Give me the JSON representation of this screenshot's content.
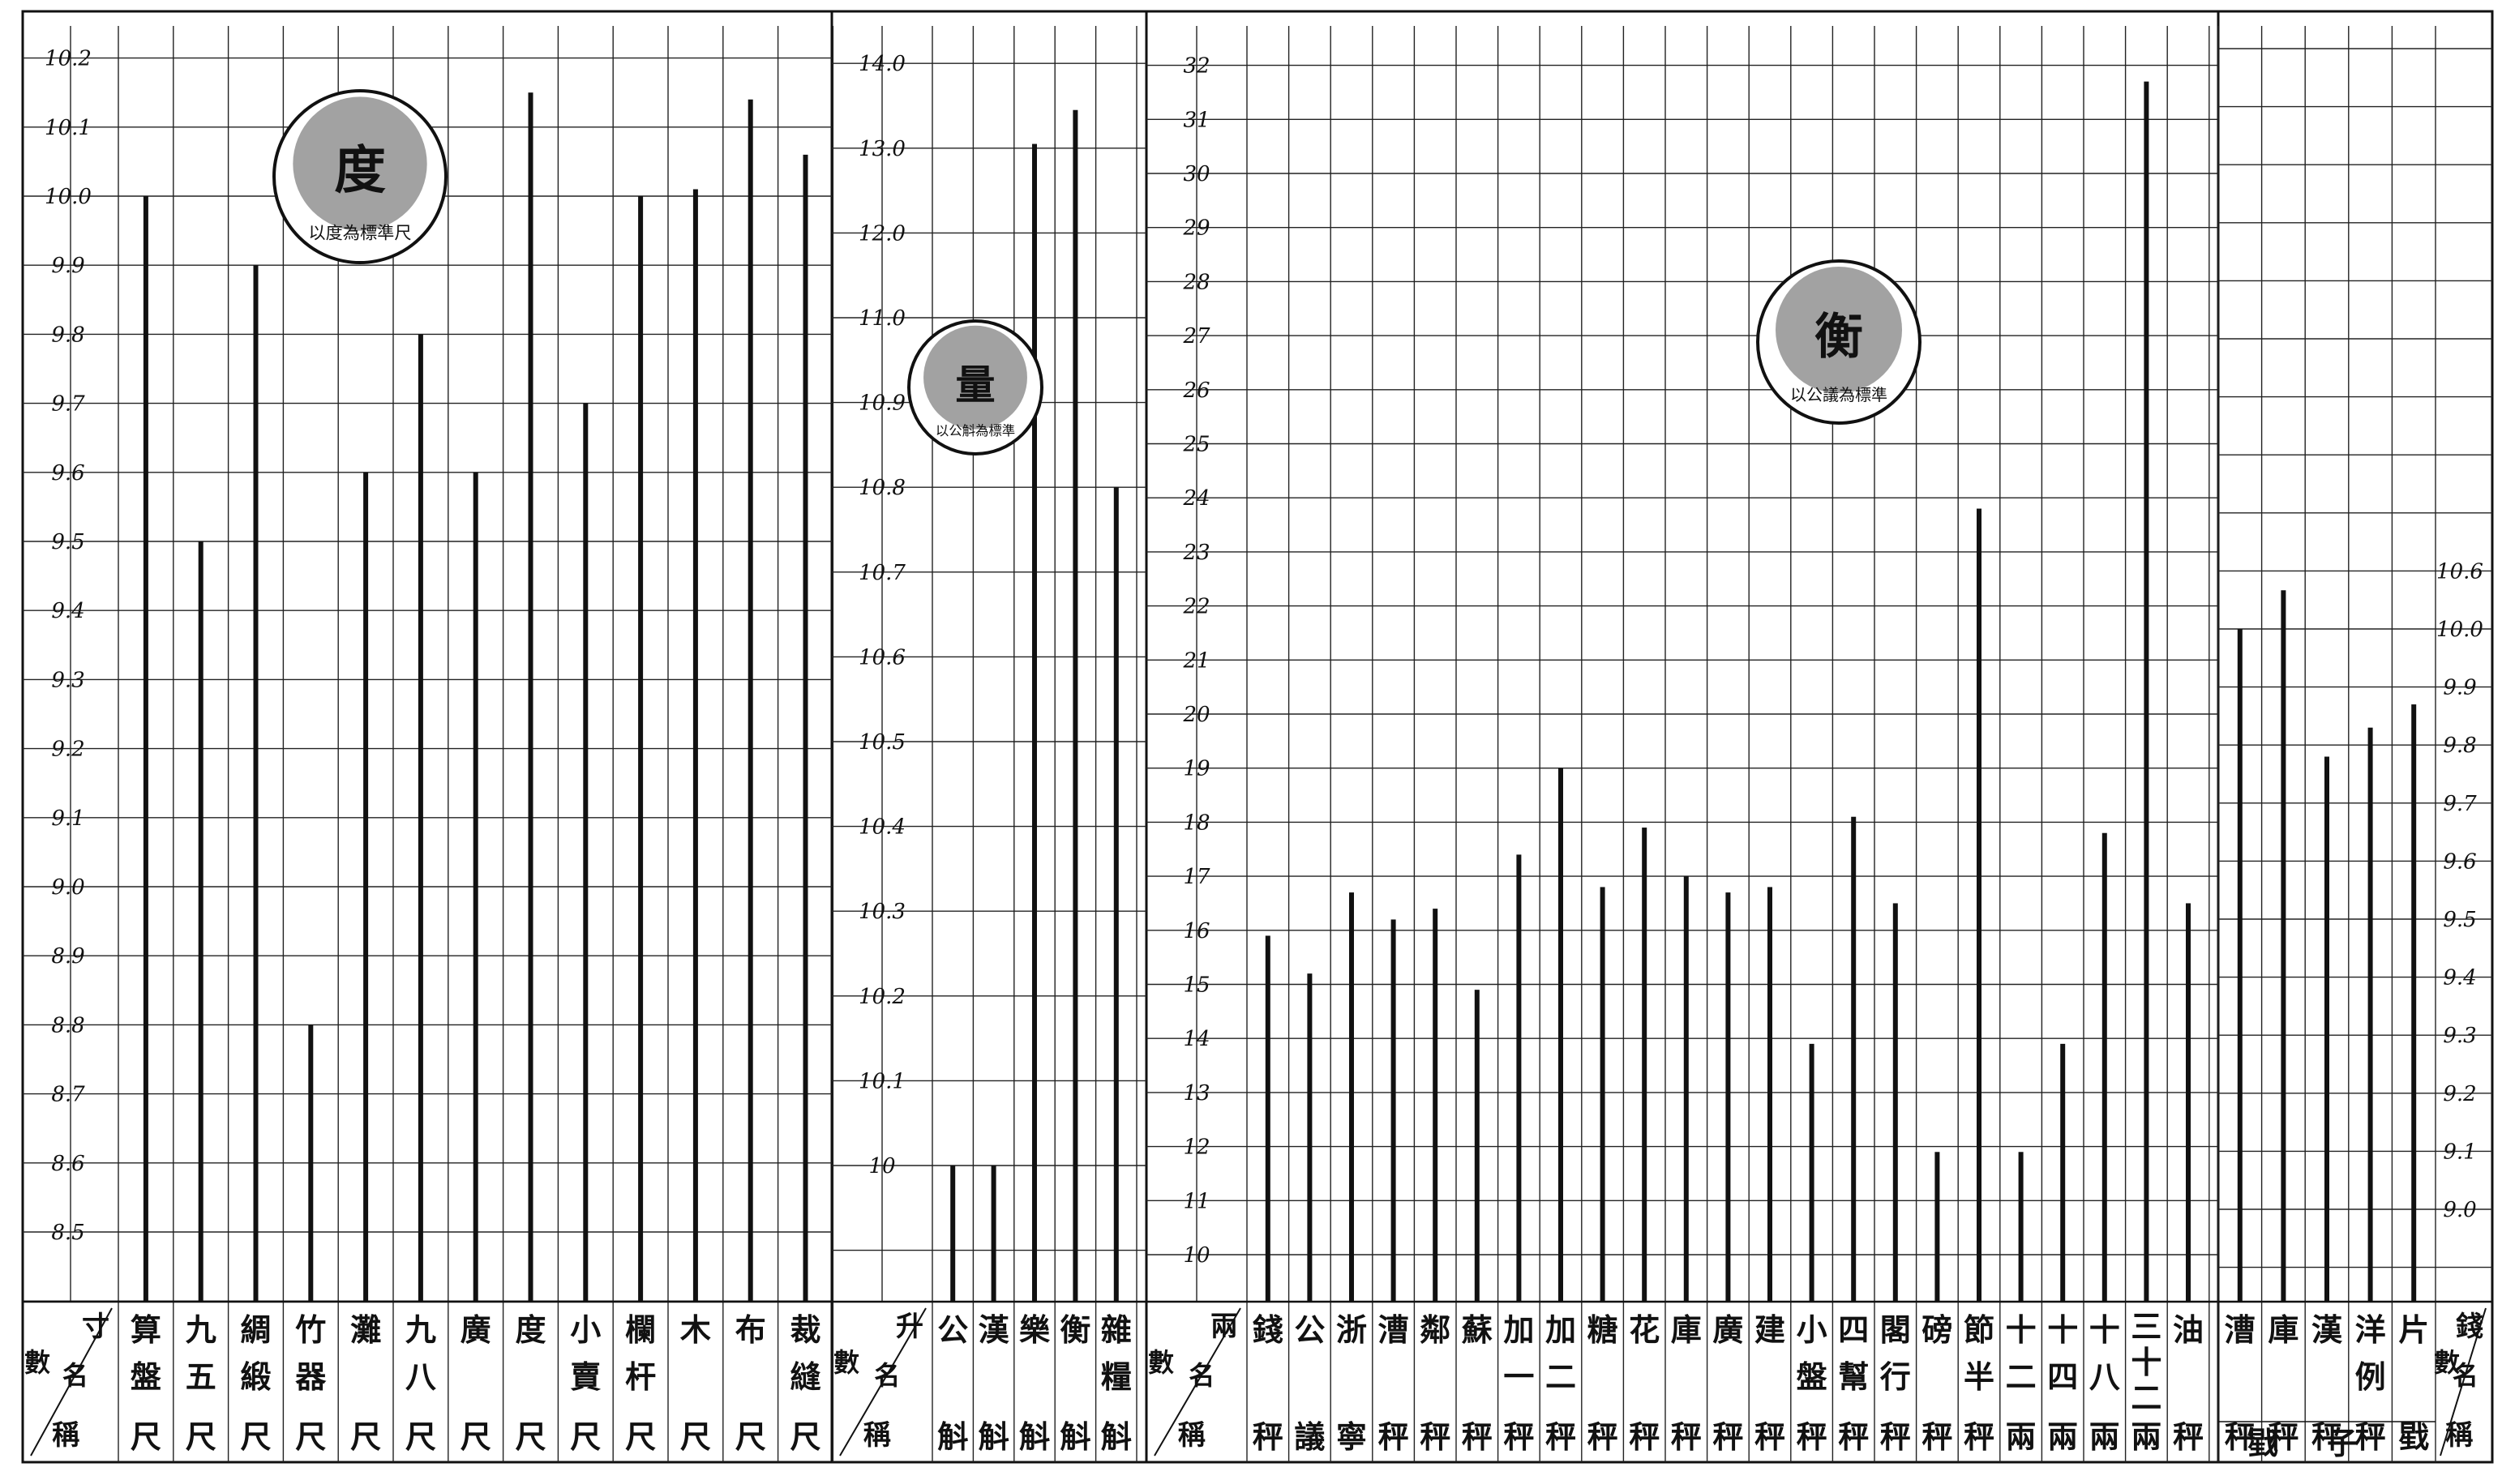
{
  "charts": [
    {
      "id": "du",
      "stamp": "度",
      "stamp_text": "以度為標準尺",
      "header": [
        "寸",
        "數",
        "名",
        "稱"
      ],
      "y_ticks": [
        "8.5",
        "8.6",
        "8.7",
        "8.8",
        "8.9",
        "9.0",
        "9.1",
        "9.2",
        "9.3",
        "9.4",
        "9.5",
        "9.6",
        "9.7",
        "9.8",
        "9.9",
        "10.0",
        "10.1",
        "10.2"
      ],
      "categories": [
        [
          "算",
          "盤",
          "尺"
        ],
        [
          "九",
          "五",
          "尺"
        ],
        [
          "綢",
          "緞",
          "尺"
        ],
        [
          "竹",
          "器",
          "尺"
        ],
        [
          "灘",
          "尺"
        ],
        [
          "九",
          "八",
          "尺"
        ],
        [
          "廣",
          "尺"
        ],
        [
          "度",
          "尺"
        ],
        [
          "小",
          "賣",
          "尺"
        ],
        [
          "欄",
          "杆",
          "尺"
        ],
        [
          "木",
          "尺"
        ],
        [
          "布",
          "尺"
        ],
        [
          "裁",
          "縫",
          "尺"
        ]
      ]
    },
    {
      "id": "liang",
      "stamp": "量",
      "stamp_text": "以公斛為標準",
      "header": [
        "升",
        "數",
        "名",
        "稱"
      ],
      "y_ticks": [
        "10",
        "10.1",
        "10.2",
        "10.3",
        "10.4",
        "10.5",
        "10.6",
        "10.7",
        "10.8",
        "10.9",
        "11.0",
        "12.0",
        "13.0",
        "14.0"
      ],
      "categories": [
        [
          "公",
          "斛"
        ],
        [
          "漢",
          "斛"
        ],
        [
          "樂",
          "斛"
        ],
        [
          "衡",
          "斛"
        ],
        [
          "雜",
          "糧",
          "斛"
        ]
      ]
    },
    {
      "id": "heng",
      "stamp": "衡",
      "stamp_text": "以公議為標準",
      "header": [
        "兩",
        "數",
        "名",
        "稱"
      ],
      "y_ticks": [
        "10",
        "11",
        "12",
        "13",
        "14",
        "15",
        "16",
        "17",
        "18",
        "19",
        "20",
        "21",
        "22",
        "23",
        "24",
        "25",
        "26",
        "27",
        "28",
        "29",
        "30",
        "31",
        "32"
      ],
      "categories": [
        [
          "錢",
          "秤"
        ],
        [
          "公",
          "議"
        ],
        [
          "浙",
          "寧"
        ],
        [
          "漕",
          "秤"
        ],
        [
          "鄰",
          "秤"
        ],
        [
          "蘇",
          "秤"
        ],
        [
          "加",
          "一",
          "秤"
        ],
        [
          "加",
          "二",
          "秤"
        ],
        [
          "糖",
          "秤"
        ],
        [
          "花",
          "秤"
        ],
        [
          "庫",
          "秤"
        ],
        [
          "廣",
          "秤"
        ],
        [
          "建",
          "秤"
        ],
        [
          "小",
          "盤",
          "秤"
        ],
        [
          "四",
          "幫",
          "秤"
        ],
        [
          "閣",
          "行",
          "秤"
        ],
        [
          "磅",
          "秤"
        ],
        [
          "節",
          "半",
          "秤"
        ],
        [
          "十",
          "二",
          "兩"
        ],
        [
          "十",
          "四",
          "兩"
        ],
        [
          "十",
          "八",
          "兩"
        ],
        [
          "三",
          "十",
          "二",
          "兩"
        ],
        [
          "油",
          "秤"
        ]
      ]
    },
    {
      "id": "xi",
      "header": [
        "錢",
        "數",
        "名",
        "稱"
      ],
      "y_ticks": [
        "9.0",
        "9.1",
        "9.2",
        "9.3",
        "9.4",
        "9.5",
        "9.6",
        "9.7",
        "9.8",
        "9.9",
        "10.0",
        "10.6"
      ],
      "categories": [
        [
          "漕",
          "秤"
        ],
        [
          "庫",
          "秤"
        ],
        [
          "漢",
          "秤"
        ],
        [
          "洋",
          "例",
          "秤"
        ],
        [
          "片",
          "戥"
        ]
      ],
      "footer": "戥子"
    }
  ],
  "chart_data": [
    {
      "type": "bar",
      "unit": "寸",
      "categories": [
        "算盤尺",
        "九五尺",
        "綢緞尺",
        "竹器尺",
        "灘尺",
        "九八尺",
        "廣尺",
        "度尺",
        "小賣尺",
        "欄杆尺",
        "木尺",
        "布尺",
        "裁縫尺"
      ],
      "values": [
        10.0,
        9.5,
        9.9,
        8.8,
        9.6,
        9.8,
        9.6,
        10.15,
        9.7,
        10.0,
        10.01,
        10.14,
        10.06
      ],
      "ylim": [
        8.4,
        10.3
      ]
    },
    {
      "type": "bar",
      "unit": "升",
      "scale": "broken axis: 0.1 per grid below 11.0, 1.0 per grid above 11.0",
      "categories": [
        "公斛",
        "漢斛",
        "樂斛",
        "衡斛",
        "雜糧斛"
      ],
      "values": [
        10.0,
        10.0,
        13.05,
        13.45,
        10.8
      ],
      "ylim": [
        9.9,
        14.0
      ]
    },
    {
      "type": "bar",
      "unit": "兩",
      "categories": [
        "錢秤",
        "公議",
        "浙寧",
        "漕秤",
        "鄰秤",
        "蘇秤",
        "加一秤",
        "加二秤",
        "糖秤",
        "花秤",
        "庫秤",
        "廣秤",
        "建秤",
        "小盤秤",
        "四幫秤",
        "閣行秤",
        "磅秤",
        "節半秤",
        "十二兩",
        "十四兩",
        "十八兩",
        "三十二兩",
        "油秤"
      ],
      "values": [
        15.9,
        15.2,
        16.7,
        16.2,
        16.4,
        14.9,
        17.4,
        19.0,
        16.8,
        17.9,
        17.0,
        16.7,
        16.8,
        13.9,
        18.1,
        16.5,
        11.9,
        23.8,
        11.9,
        13.9,
        17.8,
        31.7,
        16.5
      ],
      "ylim": [
        9.2,
        32.6
      ]
    },
    {
      "type": "bar",
      "unit": "錢",
      "scale": "top tick 10.6 sits one grid above 10.0",
      "categories": [
        "漕秤",
        "庫秤",
        "漢秤",
        "洋例秤",
        "片戥"
      ],
      "values": [
        10.0,
        10.4,
        9.78,
        9.83,
        9.87
      ],
      "ylim": [
        8.9,
        10.6
      ]
    }
  ]
}
